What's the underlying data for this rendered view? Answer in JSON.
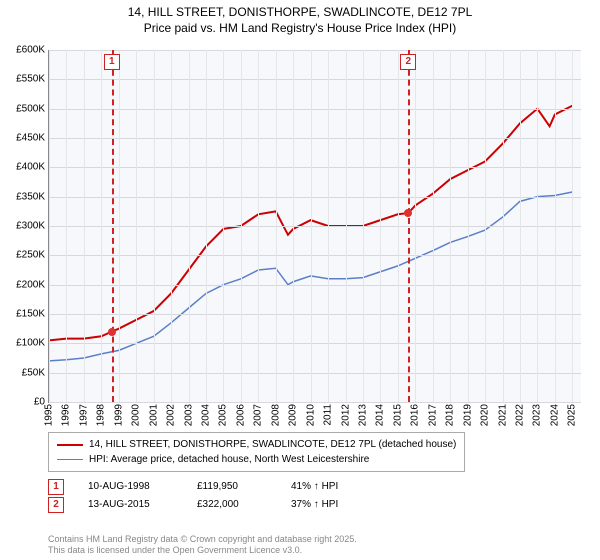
{
  "title": {
    "line1": "14, HILL STREET, DONISTHORPE, SWADLINCOTE, DE12 7PL",
    "line2": "Price paid vs. HM Land Registry's House Price Index (HPI)"
  },
  "chart": {
    "type": "line",
    "background_color": "#f7f8fb",
    "grid_color": "#d6d8de",
    "xlim": [
      1995,
      2025.5
    ],
    "ylim": [
      0,
      600000
    ],
    "ytick_step": 50000,
    "yticks": [
      "£0",
      "£50K",
      "£100K",
      "£150K",
      "£200K",
      "£250K",
      "£300K",
      "£350K",
      "£400K",
      "£450K",
      "£500K",
      "£550K",
      "£600K"
    ],
    "xticks": [
      1995,
      1996,
      1997,
      1998,
      1999,
      2000,
      2001,
      2002,
      2003,
      2004,
      2005,
      2006,
      2007,
      2008,
      2009,
      2010,
      2011,
      2012,
      2013,
      2014,
      2015,
      2016,
      2017,
      2018,
      2019,
      2020,
      2021,
      2022,
      2023,
      2024,
      2025
    ],
    "label_fontsize": 10,
    "series": [
      {
        "name": "14, HILL STREET, DONISTHORPE, SWADLINCOTE, DE12 7PL (detached house)",
        "color": "#cc0000",
        "line_width": 2,
        "data": [
          [
            1995,
            105000
          ],
          [
            1996,
            108000
          ],
          [
            1997,
            108000
          ],
          [
            1998,
            112000
          ],
          [
            1998.6,
            119950
          ],
          [
            1999,
            125000
          ],
          [
            2000,
            140000
          ],
          [
            2001,
            155000
          ],
          [
            2002,
            185000
          ],
          [
            2003,
            225000
          ],
          [
            2004,
            265000
          ],
          [
            2005,
            295000
          ],
          [
            2006,
            300000
          ],
          [
            2007,
            320000
          ],
          [
            2008,
            325000
          ],
          [
            2008.7,
            285000
          ],
          [
            2009,
            295000
          ],
          [
            2010,
            310000
          ],
          [
            2011,
            300000
          ],
          [
            2012,
            300000
          ],
          [
            2013,
            300000
          ],
          [
            2014,
            310000
          ],
          [
            2015,
            320000
          ],
          [
            2015.6,
            322000
          ],
          [
            2016,
            335000
          ],
          [
            2017,
            355000
          ],
          [
            2018,
            380000
          ],
          [
            2019,
            395000
          ],
          [
            2020,
            410000
          ],
          [
            2021,
            440000
          ],
          [
            2022,
            475000
          ],
          [
            2023,
            500000
          ],
          [
            2023.7,
            470000
          ],
          [
            2024,
            490000
          ],
          [
            2025,
            505000
          ]
        ]
      },
      {
        "name": "HPI: Average price, detached house, North West Leicestershire",
        "color": "#5b7fc7",
        "line_width": 1.5,
        "data": [
          [
            1995,
            70000
          ],
          [
            1996,
            72000
          ],
          [
            1997,
            75000
          ],
          [
            1998,
            82000
          ],
          [
            1999,
            88000
          ],
          [
            2000,
            100000
          ],
          [
            2001,
            112000
          ],
          [
            2002,
            135000
          ],
          [
            2003,
            160000
          ],
          [
            2004,
            185000
          ],
          [
            2005,
            200000
          ],
          [
            2006,
            210000
          ],
          [
            2007,
            225000
          ],
          [
            2008,
            228000
          ],
          [
            2008.7,
            200000
          ],
          [
            2009,
            205000
          ],
          [
            2010,
            215000
          ],
          [
            2011,
            210000
          ],
          [
            2012,
            210000
          ],
          [
            2013,
            212000
          ],
          [
            2014,
            222000
          ],
          [
            2015,
            232000
          ],
          [
            2016,
            245000
          ],
          [
            2017,
            258000
          ],
          [
            2018,
            272000
          ],
          [
            2019,
            282000
          ],
          [
            2020,
            293000
          ],
          [
            2021,
            315000
          ],
          [
            2022,
            342000
          ],
          [
            2023,
            350000
          ],
          [
            2024,
            352000
          ],
          [
            2025,
            358000
          ]
        ]
      }
    ],
    "markers": [
      {
        "label": "1",
        "x": 1998.6,
        "y": 119950
      },
      {
        "label": "2",
        "x": 2015.6,
        "y": 322000
      }
    ],
    "marker_color": "#d02020",
    "dot_color": "#e03030"
  },
  "sales": [
    {
      "badge": "1",
      "date": "10-AUG-1998",
      "price": "£119,950",
      "hpi": "41% ↑ HPI"
    },
    {
      "badge": "2",
      "date": "13-AUG-2015",
      "price": "£322,000",
      "hpi": "37% ↑ HPI"
    }
  ],
  "footer": {
    "line1": "Contains HM Land Registry data © Crown copyright and database right 2025.",
    "line2": "This data is licensed under the Open Government Licence v3.0."
  }
}
